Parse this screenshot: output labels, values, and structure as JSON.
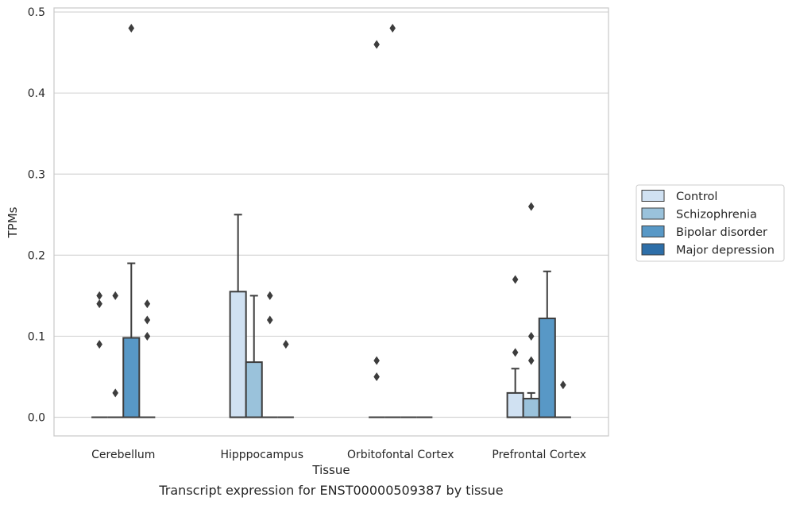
{
  "chart_data": {
    "type": "boxplot",
    "title": "",
    "caption": "Transcript expression for ENST00000509387 by tissue",
    "xlabel": "Tissue",
    "ylabel": "TPMs",
    "ylim": [
      -0.023,
      0.505
    ],
    "yticks": [
      "0.0",
      "0.1",
      "0.2",
      "0.3",
      "0.4",
      "0.5"
    ],
    "grid": true,
    "legend_position": "right",
    "categories": [
      "Cerebellum",
      "Hipppocampus",
      "Orbitofontal Cortex",
      "Prefrontal Cortex"
    ],
    "series": [
      {
        "name": "Control",
        "color": "#d0e1f2",
        "boxes": [
          {
            "q1": 0,
            "median": 0,
            "q3": 0,
            "whisker_low": 0,
            "whisker_high": 0,
            "outliers": [
              0.09,
              0.14,
              0.15
            ]
          },
          {
            "q1": 0,
            "median": 0,
            "q3": 0.155,
            "whisker_low": 0,
            "whisker_high": 0.25,
            "outliers": []
          },
          {
            "q1": 0,
            "median": 0,
            "q3": 0,
            "whisker_low": 0,
            "whisker_high": 0,
            "outliers": [
              0.05,
              0.07,
              0.46
            ]
          },
          {
            "q1": 0,
            "median": 0,
            "q3": 0.03,
            "whisker_low": 0,
            "whisker_high": 0.06,
            "outliers": [
              0.08,
              0.17
            ]
          }
        ]
      },
      {
        "name": "Schizophrenia",
        "color": "#9ac2db",
        "boxes": [
          {
            "q1": 0,
            "median": 0,
            "q3": 0,
            "whisker_low": 0,
            "whisker_high": 0,
            "outliers": [
              0.03,
              0.15
            ]
          },
          {
            "q1": 0,
            "median": 0,
            "q3": 0.068,
            "whisker_low": 0,
            "whisker_high": 0.15,
            "outliers": []
          },
          {
            "q1": 0,
            "median": 0,
            "q3": 0,
            "whisker_low": 0,
            "whisker_high": 0,
            "outliers": [
              0.48
            ]
          },
          {
            "q1": 0,
            "median": 0,
            "q3": 0.023,
            "whisker_low": 0,
            "whisker_high": 0.03,
            "outliers": [
              0.07,
              0.1,
              0.26
            ]
          }
        ]
      },
      {
        "name": "Bipolar disorder",
        "color": "#5898c6",
        "boxes": [
          {
            "q1": 0,
            "median": 0,
            "q3": 0.098,
            "whisker_low": 0,
            "whisker_high": 0.19,
            "outliers": [
              0.48
            ]
          },
          {
            "q1": 0,
            "median": 0,
            "q3": 0,
            "whisker_low": 0,
            "whisker_high": 0,
            "outliers": [
              0.12,
              0.15
            ]
          },
          {
            "q1": 0,
            "median": 0,
            "q3": 0,
            "whisker_low": 0,
            "whisker_high": 0,
            "outliers": []
          },
          {
            "q1": 0,
            "median": 0,
            "q3": 0.122,
            "whisker_low": 0,
            "whisker_high": 0.18,
            "outliers": []
          }
        ]
      },
      {
        "name": "Major depression",
        "color": "#2d6ea8",
        "boxes": [
          {
            "q1": 0,
            "median": 0,
            "q3": 0,
            "whisker_low": 0,
            "whisker_high": 0,
            "outliers": [
              0.1,
              0.12,
              0.14
            ]
          },
          {
            "q1": 0,
            "median": 0,
            "q3": 0,
            "whisker_low": 0,
            "whisker_high": 0,
            "outliers": [
              0.09
            ]
          },
          {
            "q1": 0,
            "median": 0,
            "q3": 0,
            "whisker_low": 0,
            "whisker_high": 0,
            "outliers": []
          },
          {
            "q1": 0,
            "median": 0,
            "q3": 0,
            "whisker_low": 0,
            "whisker_high": 0,
            "outliers": [
              0.04
            ]
          }
        ]
      }
    ]
  }
}
